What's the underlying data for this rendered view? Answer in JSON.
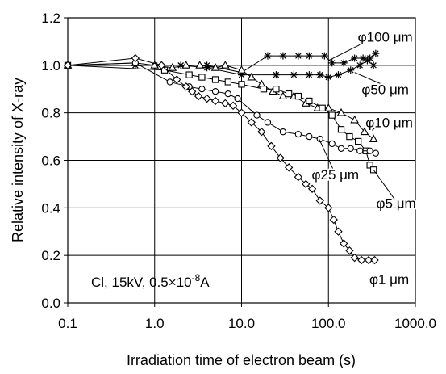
{
  "chart_data": {
    "type": "scatter",
    "xscale": "log",
    "xlim": [
      0.1,
      1000
    ],
    "ylim": [
      0,
      1.2
    ],
    "xticks": [
      "0.1",
      "1.0",
      "10.0",
      "100.0",
      "1000.0"
    ],
    "yticks": [
      "0.0",
      "0.2",
      "0.4",
      "0.6",
      "0.8",
      "1.0",
      "1.2"
    ],
    "xlabel": "Irradiation time of electron beam (s)",
    "ylabel": "Relative intensity of X-ray",
    "grid": true,
    "annotation": {
      "prefix": "Cl, 15kV, 0.5×10",
      "exponent": "-8",
      "suffix": "A"
    },
    "series": [
      {
        "name": "φ100 μm",
        "marker": "star",
        "points": [
          [
            0.1,
            1.0
          ],
          [
            0.6,
            1.0
          ],
          [
            1.0,
            1.0
          ],
          [
            2.0,
            1.0
          ],
          [
            4.0,
            1.0
          ],
          [
            10,
            0.97
          ],
          [
            20,
            1.04
          ],
          [
            30,
            1.04
          ],
          [
            45,
            1.04
          ],
          [
            60,
            1.04
          ],
          [
            90,
            1.04
          ],
          [
            110,
            1.01
          ],
          [
            150,
            1.01
          ],
          [
            200,
            1.03
          ],
          [
            250,
            1.03
          ],
          [
            300,
            1.03
          ],
          [
            350,
            1.05
          ]
        ]
      },
      {
        "name": "φ50 μm",
        "marker": "star",
        "points": [
          [
            0.1,
            1.0
          ],
          [
            0.6,
            1.0
          ],
          [
            1.0,
            1.0
          ],
          [
            2.0,
            1.0
          ],
          [
            4.0,
            0.99
          ],
          [
            10,
            0.96
          ],
          [
            25,
            0.96
          ],
          [
            40,
            0.96
          ],
          [
            60,
            0.96
          ],
          [
            80,
            0.96
          ],
          [
            100,
            0.95
          ],
          [
            130,
            0.96
          ],
          [
            180,
            0.98
          ],
          [
            230,
            1.0
          ],
          [
            280,
            1.02
          ],
          [
            330,
            1.0
          ]
        ]
      },
      {
        "name": "φ10 μm",
        "marker": "triangle",
        "points": [
          [
            0.1,
            1.0
          ],
          [
            0.6,
            1.01
          ],
          [
            1.0,
            1.0
          ],
          [
            1.6,
            0.99
          ],
          [
            2.3,
            1.0
          ],
          [
            3.3,
            1.0
          ],
          [
            5,
            0.99
          ],
          [
            6.5,
            1.0
          ],
          [
            10,
            0.98
          ],
          [
            13,
            0.95
          ],
          [
            17,
            0.92
          ],
          [
            23,
            0.89
          ],
          [
            30,
            0.87
          ],
          [
            40,
            0.87
          ],
          [
            55,
            0.84
          ],
          [
            75,
            0.82
          ],
          [
            100,
            0.82
          ],
          [
            140,
            0.8
          ],
          [
            200,
            0.77
          ],
          [
            260,
            0.72
          ],
          [
            330,
            0.69
          ]
        ]
      },
      {
        "name": "φ5 μm",
        "marker": "square",
        "points": [
          [
            0.1,
            1.0
          ],
          [
            1.3,
            0.98
          ],
          [
            2.5,
            0.96
          ],
          [
            3.5,
            0.95
          ],
          [
            5,
            0.94
          ],
          [
            7,
            0.93
          ],
          [
            10,
            0.92
          ],
          [
            18,
            0.9
          ],
          [
            25,
            0.9
          ],
          [
            35,
            0.88
          ],
          [
            45,
            0.87
          ],
          [
            60,
            0.85
          ],
          [
            85,
            0.82
          ],
          [
            110,
            0.79
          ],
          [
            140,
            0.73
          ],
          [
            175,
            0.7
          ],
          [
            220,
            0.68
          ],
          [
            270,
            0.64
          ],
          [
            300,
            0.58
          ],
          [
            330,
            0.56
          ]
        ]
      },
      {
        "name": "φ25 μm",
        "marker": "circle",
        "points": [
          [
            0.1,
            1.0
          ],
          [
            0.6,
            1.01
          ],
          [
            1.5,
            0.93
          ],
          [
            2.5,
            0.91
          ],
          [
            3.5,
            0.9
          ],
          [
            5,
            0.89
          ],
          [
            7,
            0.88
          ],
          [
            9,
            0.86
          ],
          [
            15,
            0.79
          ],
          [
            20,
            0.76
          ],
          [
            30,
            0.72
          ],
          [
            45,
            0.71
          ],
          [
            60,
            0.7
          ],
          [
            80,
            0.69
          ],
          [
            110,
            0.67
          ],
          [
            140,
            0.65
          ],
          [
            180,
            0.65
          ],
          [
            230,
            0.64
          ],
          [
            300,
            0.64
          ],
          [
            350,
            0.63
          ]
        ]
      },
      {
        "name": "φ1 μm",
        "marker": "diamond",
        "points": [
          [
            0.1,
            1.0
          ],
          [
            0.6,
            1.03
          ],
          [
            1.2,
            1.0
          ],
          [
            1.8,
            0.94
          ],
          [
            2.3,
            0.91
          ],
          [
            2.7,
            0.89
          ],
          [
            3.2,
            0.87
          ],
          [
            4,
            0.86
          ],
          [
            5,
            0.85
          ],
          [
            6.5,
            0.84
          ],
          [
            8,
            0.83
          ],
          [
            10,
            0.8
          ],
          [
            13,
            0.76
          ],
          [
            17,
            0.72
          ],
          [
            22,
            0.66
          ],
          [
            28,
            0.61
          ],
          [
            35,
            0.57
          ],
          [
            45,
            0.53
          ],
          [
            55,
            0.5
          ],
          [
            65,
            0.48
          ],
          [
            80,
            0.43
          ],
          [
            100,
            0.4
          ],
          [
            115,
            0.35
          ],
          [
            130,
            0.3
          ],
          [
            150,
            0.25
          ],
          [
            175,
            0.22
          ],
          [
            200,
            0.19
          ],
          [
            240,
            0.18
          ],
          [
            290,
            0.18
          ],
          [
            340,
            0.18
          ]
        ]
      }
    ],
    "labels": [
      {
        "text": "φ100 μm",
        "x": 450,
        "y": 1.12,
        "target": [
          100,
          1.02
        ]
      },
      {
        "text": "φ50 μm",
        "x": 450,
        "y": 0.9,
        "target": [
          200,
          0.97
        ]
      },
      {
        "text": "φ10 μm",
        "x": 500,
        "y": 0.76,
        "target": [
          300,
          0.72
        ]
      },
      {
        "text": "φ25 μm",
        "x": 120,
        "y": 0.54,
        "target": [
          78,
          0.69
        ]
      },
      {
        "text": "φ5 μm",
        "x": 600,
        "y": 0.42,
        "target": [
          330,
          0.56
        ]
      },
      {
        "text": "φ1 μm",
        "x": 500,
        "y": 0.1,
        "target": null
      }
    ]
  }
}
